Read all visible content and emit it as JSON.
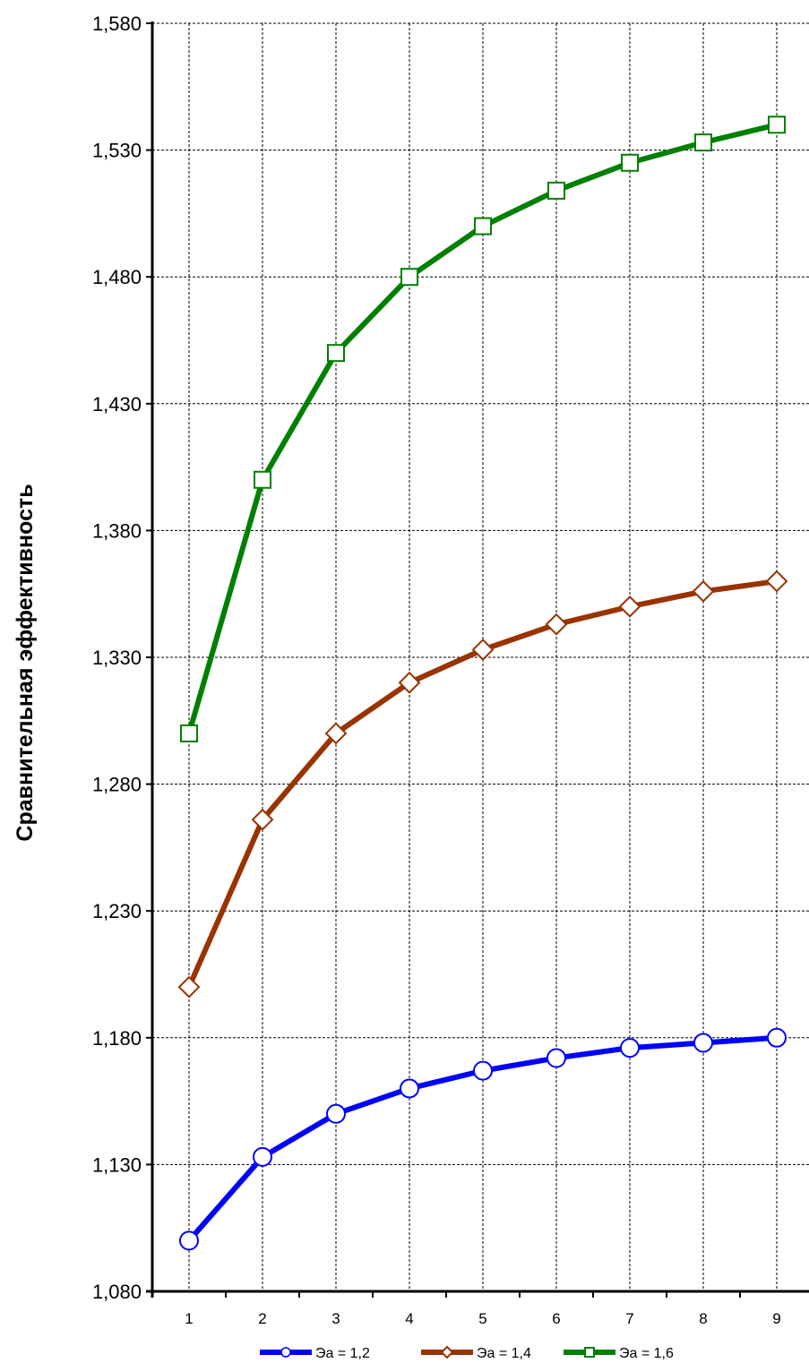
{
  "chart_data": {
    "type": "line",
    "title": "",
    "xlabel": "",
    "ylabel": "Сравнительная эффективность",
    "x": [
      1,
      2,
      3,
      4,
      5,
      6,
      7,
      8,
      9
    ],
    "x_tick_labels": [
      "1",
      "2",
      "3",
      "4",
      "5",
      "6",
      "7",
      "8",
      "9"
    ],
    "y_tick_labels": [
      "1,080",
      "1,130",
      "1,180",
      "1,230",
      "1,280",
      "1,330",
      "1,380",
      "1,430",
      "1,480",
      "1,530",
      "1,580"
    ],
    "y_ticks": [
      1.08,
      1.13,
      1.18,
      1.23,
      1.28,
      1.33,
      1.38,
      1.43,
      1.48,
      1.53,
      1.58
    ],
    "ylim": [
      1.08,
      1.58
    ],
    "grid": true,
    "legend_position": "bottom",
    "series": [
      {
        "name": "Эа = 1,2",
        "color": "#0000ff",
        "marker": "circle",
        "values": [
          1.1,
          1.133,
          1.15,
          1.16,
          1.167,
          1.172,
          1.176,
          1.178,
          1.18
        ]
      },
      {
        "name": "Эа = 1,4",
        "color": "#993300",
        "marker": "diamond",
        "values": [
          1.2,
          1.266,
          1.3,
          1.32,
          1.333,
          1.343,
          1.35,
          1.356,
          1.36
        ]
      },
      {
        "name": "Эа = 1,6",
        "color": "#008000",
        "marker": "square",
        "values": [
          1.3,
          1.4,
          1.45,
          1.48,
          1.5,
          1.514,
          1.525,
          1.533,
          1.54
        ]
      }
    ]
  }
}
